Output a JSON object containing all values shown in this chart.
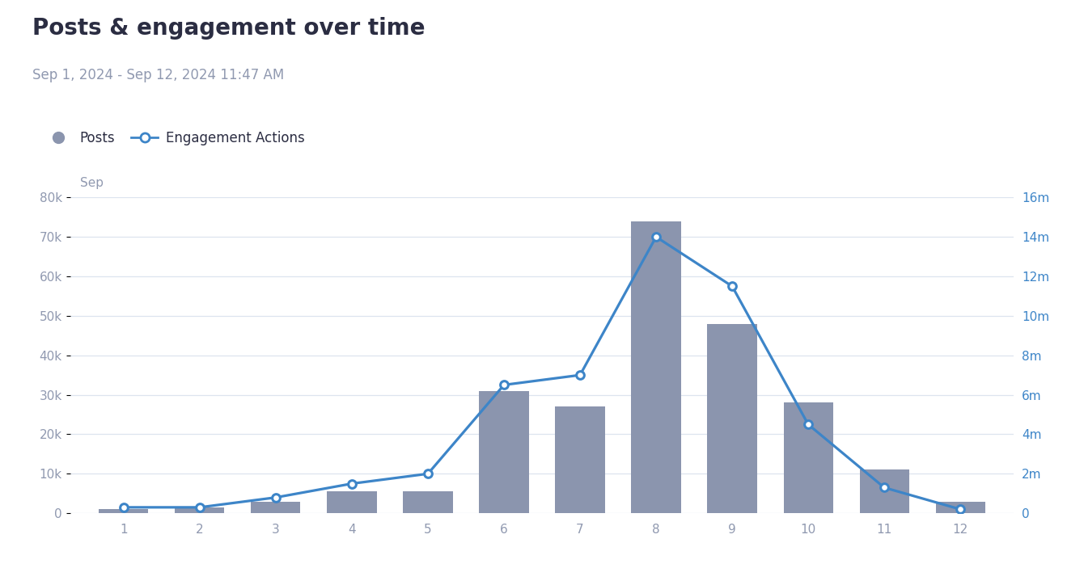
{
  "title": "Posts & engagement over time",
  "subtitle": "Sep 1, 2024 - Sep 12, 2024 11:47 AM",
  "sep_label": "Sep",
  "days": [
    1,
    2,
    3,
    4,
    5,
    6,
    7,
    8,
    9,
    10,
    11,
    12
  ],
  "posts": [
    1000,
    1500,
    3000,
    5500,
    5500,
    31000,
    27000,
    74000,
    48000,
    28000,
    11000,
    3000
  ],
  "engagement": [
    300000,
    300000,
    800000,
    1500000,
    2000000,
    6500000,
    7000000,
    14000000,
    11500000,
    4500000,
    1300000,
    200000
  ],
  "bar_color": "#8b95ae",
  "line_color": "#3d85c8",
  "background_color": "#ffffff",
  "grid_color": "#dde4ef",
  "title_color": "#2b2d42",
  "subtitle_color": "#9099b0",
  "tick_color": "#9099b0",
  "right_tick_color": "#3d85c8",
  "left_ylim": [
    0,
    80000
  ],
  "right_ylim": [
    0,
    16000000
  ],
  "left_yticks": [
    0,
    10000,
    20000,
    30000,
    40000,
    50000,
    60000,
    70000,
    80000
  ],
  "right_yticks": [
    0,
    2000000,
    4000000,
    6000000,
    8000000,
    10000000,
    12000000,
    14000000,
    16000000
  ],
  "left_yticklabels": [
    "0",
    "10k",
    "20k",
    "30k",
    "40k",
    "50k",
    "60k",
    "70k",
    "80k"
  ],
  "right_yticklabels": [
    "0",
    "2m",
    "4m",
    "6m",
    "8m",
    "10m",
    "12m",
    "14m",
    "16m"
  ]
}
